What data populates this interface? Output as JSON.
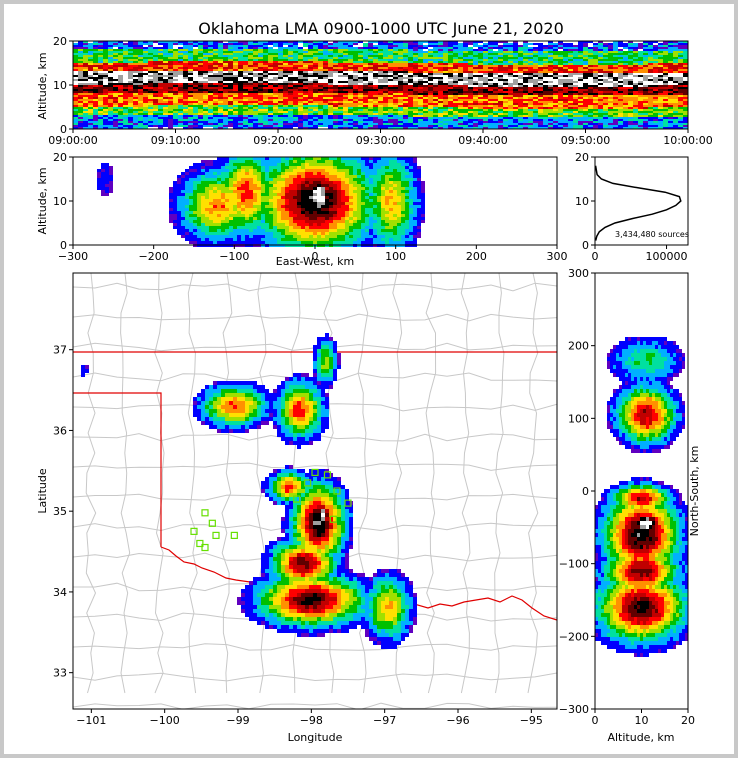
{
  "chart_data": [
    {
      "panel": "time-altitude",
      "type": "heatmap",
      "title": "Oklahoma LMA 0900-1000 UTC June 21, 2020",
      "ylabel": "Altitude, km",
      "ylim": [
        0,
        20
      ],
      "yticks": [
        "0",
        "10",
        "20"
      ],
      "xticks": [
        "09:00:00",
        "09:10:00",
        "09:20:00",
        "09:30:00",
        "09:40:00",
        "09:50:00",
        "10:00:00"
      ],
      "bands": [
        {
          "z0": 0,
          "z1": 3,
          "level": 0.15
        },
        {
          "z0": 3,
          "z1": 5,
          "level": 0.35
        },
        {
          "z0": 5,
          "z1": 8,
          "level": 0.55
        },
        {
          "z0": 8,
          "z1": 10,
          "level": 0.72
        },
        {
          "z0": 10,
          "z1": 13,
          "level": 0.9
        },
        {
          "z0": 13,
          "z1": 15,
          "level": 0.6
        },
        {
          "z0": 15,
          "z1": 18,
          "level": 0.3
        },
        {
          "z0": 18,
          "z1": 20,
          "level": 0.12
        }
      ]
    },
    {
      "panel": "east-west-altitude",
      "type": "heatmap",
      "xlabel": "East-West, km",
      "ylabel": "Altitude, km",
      "xlim": [
        -300,
        300
      ],
      "ylim": [
        0,
        20
      ],
      "xticks": [
        "−300",
        "−200",
        "−100",
        "0",
        "100",
        "200",
        "300"
      ],
      "yticks": [
        "0",
        "10",
        "20"
      ],
      "blobs": [
        {
          "x": -120,
          "z": 9,
          "sx": 30,
          "sz": 5,
          "level": 0.55
        },
        {
          "x": -85,
          "z": 12,
          "sx": 22,
          "sz": 6,
          "level": 0.6
        },
        {
          "x": 0,
          "z": 10,
          "sx": 45,
          "sz": 7,
          "level": 0.85
        },
        {
          "x": 5,
          "z": 11,
          "sx": 14,
          "sz": 4,
          "level": 1.0
        },
        {
          "x": 95,
          "z": 10,
          "sx": 20,
          "sz": 7,
          "level": 0.5
        },
        {
          "x": -260,
          "z": 15,
          "sx": 10,
          "sz": 4,
          "level": 0.1
        }
      ]
    },
    {
      "panel": "altitude-histogram",
      "type": "line",
      "annotation": "3,434,480 sources",
      "xlim": [
        0,
        130000
      ],
      "ylim": [
        0,
        20
      ],
      "xticks": [
        "0",
        "100000"
      ],
      "yticks": [
        "0",
        "10",
        "20"
      ],
      "x": [
        1000,
        2500,
        6000,
        14000,
        28000,
        52000,
        80000,
        100000,
        113000,
        120000,
        118000,
        98000,
        60000,
        25000,
        9000,
        3000,
        800
      ],
      "y": [
        1,
        2,
        3,
        4,
        5,
        6,
        7,
        8,
        9,
        10,
        11,
        12,
        13,
        14,
        15,
        16,
        18
      ]
    },
    {
      "panel": "plan-view",
      "type": "heatmap",
      "xlabel": "Longitude",
      "ylabel": "Latitude",
      "xlim": [
        -101.25,
        -94.65
      ],
      "ylim": [
        32.55,
        37.95
      ],
      "xticks": [
        "−101",
        "−100",
        "−99",
        "−98",
        "−97",
        "−96",
        "−95"
      ],
      "yticks": [
        "33",
        "34",
        "35",
        "36",
        "37"
      ],
      "blobs": [
        {
          "lon": -99.05,
          "lat": 36.3,
          "slon": 0.28,
          "slat": 0.16,
          "level": 0.6
        },
        {
          "lon": -98.15,
          "lat": 36.25,
          "slon": 0.2,
          "slat": 0.22,
          "level": 0.6
        },
        {
          "lon": -97.8,
          "lat": 36.85,
          "slon": 0.1,
          "slat": 0.18,
          "level": 0.4
        },
        {
          "lon": -98.3,
          "lat": 35.3,
          "slon": 0.18,
          "slat": 0.12,
          "level": 0.6
        },
        {
          "lon": -97.9,
          "lat": 34.85,
          "slon": 0.22,
          "slat": 0.3,
          "level": 0.85
        },
        {
          "lon": -97.85,
          "lat": 34.95,
          "slon": 0.08,
          "slat": 0.1,
          "level": 1.0
        },
        {
          "lon": -98.1,
          "lat": 34.35,
          "slon": 0.28,
          "slat": 0.18,
          "level": 0.75
        },
        {
          "lon": -98.0,
          "lat": 33.9,
          "slon": 0.45,
          "slat": 0.2,
          "level": 0.8
        },
        {
          "lon": -96.95,
          "lat": 33.8,
          "slon": 0.2,
          "slat": 0.25,
          "level": 0.5
        },
        {
          "lon": -101.1,
          "lat": 36.75,
          "slon": 0.08,
          "slat": 0.08,
          "level": 0.1
        }
      ],
      "stations": [
        {
          "lon": -99.6,
          "lat": 34.75
        },
        {
          "lon": -99.45,
          "lat": 34.55
        },
        {
          "lon": -99.35,
          "lat": 34.85
        },
        {
          "lon": -99.3,
          "lat": 34.7
        },
        {
          "lon": -99.45,
          "lat": 34.98
        },
        {
          "lon": -99.05,
          "lat": 34.7
        },
        {
          "lon": -99.52,
          "lat": 34.6
        },
        {
          "lon": -98.05,
          "lat": 35.35
        },
        {
          "lon": -97.95,
          "lat": 35.48
        },
        {
          "lon": -97.78,
          "lat": 35.45
        },
        {
          "lon": -97.65,
          "lat": 35.25
        },
        {
          "lon": -97.5,
          "lat": 35.1
        },
        {
          "lon": -98.2,
          "lat": 35.15
        },
        {
          "lon": -97.7,
          "lat": 34.9
        }
      ]
    },
    {
      "panel": "altitude-north-south",
      "type": "heatmap",
      "xlabel": "Altitude, km",
      "ylabel": "North-South, km",
      "xlim": [
        0,
        20
      ],
      "ylim": [
        -300,
        300
      ],
      "xticks": [
        "0",
        "10",
        "20"
      ],
      "yticks": [
        "−300",
        "−200",
        "−100",
        "0",
        "100",
        "200",
        "300"
      ],
      "blobs": [
        {
          "z": 11,
          "y": 105,
          "sz": 4,
          "sy": 25,
          "level": 0.7
        },
        {
          "z": 11,
          "y": 180,
          "sz": 5,
          "sy": 20,
          "level": 0.3
        },
        {
          "z": 10,
          "y": -10,
          "sz": 4,
          "sy": 12,
          "level": 0.7
        },
        {
          "z": 10,
          "y": -60,
          "sz": 5,
          "sy": 35,
          "level": 0.85
        },
        {
          "z": 11,
          "y": -45,
          "sz": 2.5,
          "sy": 12,
          "level": 1.0
        },
        {
          "z": 10,
          "y": -110,
          "sz": 5,
          "sy": 22,
          "level": 0.75
        },
        {
          "z": 10,
          "y": -160,
          "sz": 6,
          "sy": 30,
          "level": 0.8
        }
      ]
    }
  ]
}
